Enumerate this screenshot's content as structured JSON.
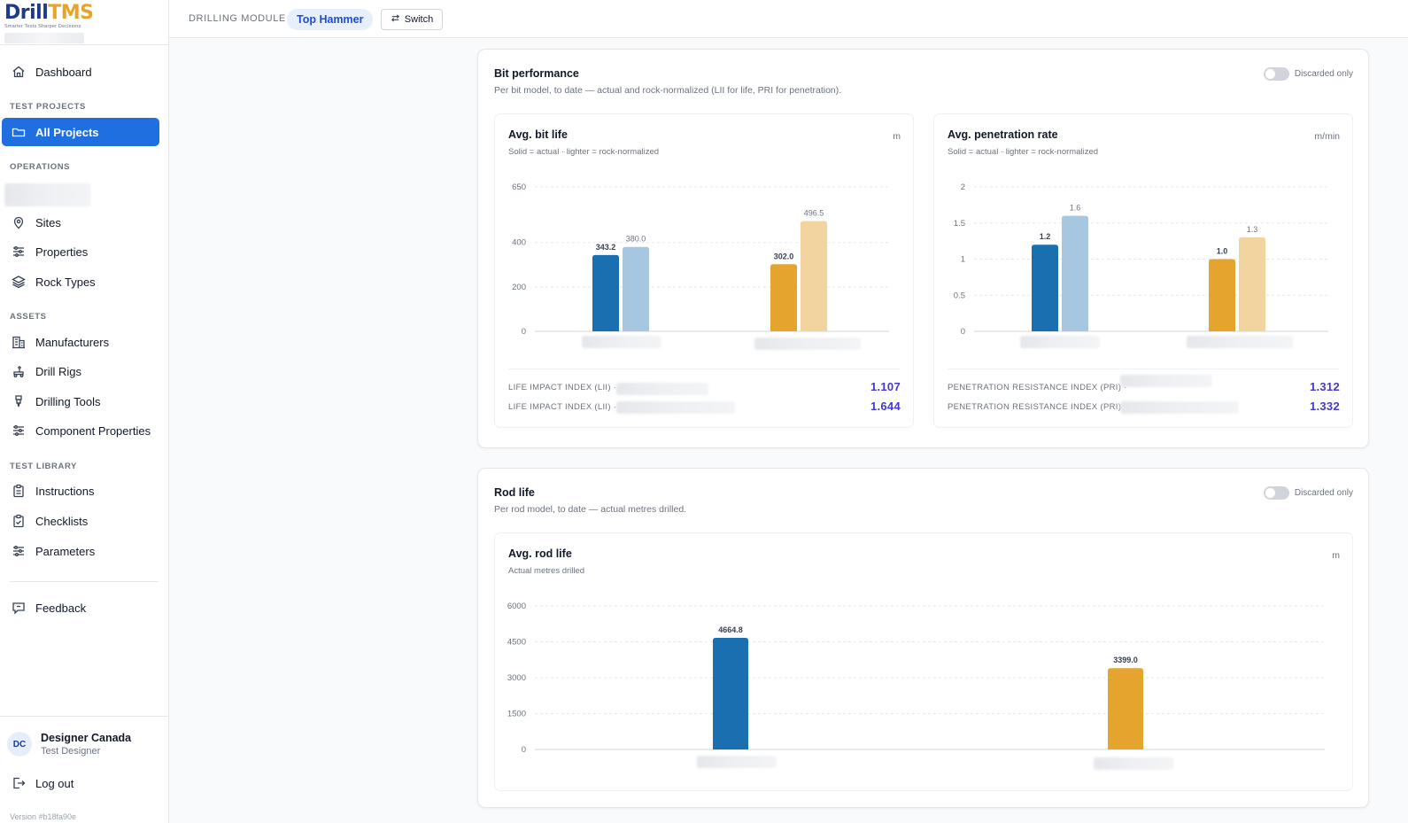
{
  "app": {
    "logo_brand_d": "D",
    "logo_brand_rill": "rill",
    "logo_brand_tms": "TMS",
    "logo_tagline": "Smarter Tests Sharper Decisions",
    "version": "Version #b18fa90e"
  },
  "topbar": {
    "module_label": "DRILLING MODULE",
    "active_module": "Top Hammer",
    "switch_label": "Switch"
  },
  "sidebar": {
    "dashboard": "Dashboard",
    "sections": {
      "test_projects": "TEST PROJECTS",
      "operations": "OPERATIONS",
      "assets": "ASSETS",
      "test_library": "TEST LIBRARY"
    },
    "all_projects": "All Projects",
    "sites": "Sites",
    "properties": "Properties",
    "rock_types": "Rock Types",
    "manufacturers": "Manufacturers",
    "drill_rigs": "Drill Rigs",
    "drilling_tools": "Drilling Tools",
    "component_properties": "Component Properties",
    "instructions": "Instructions",
    "checklists": "Checklists",
    "parameters": "Parameters",
    "feedback": "Feedback",
    "logout": "Log out"
  },
  "user": {
    "initials": "DC",
    "name": "Designer Canada",
    "role": "Test Designer"
  },
  "bit_performance": {
    "title": "Bit performance",
    "subtitle": "Per bit model, to date — actual and rock-normalized (LII for life, PRI for penetration).",
    "toggle_label": "Discarded only",
    "bit_life": {
      "title": "Avg. bit life",
      "subtitle": "Solid = actual · lighter = rock-normalized",
      "unit": "m",
      "index_label": "LIFE IMPACT INDEX (LII) ·",
      "index_values": [
        "1.107",
        "1.644"
      ]
    },
    "penetration": {
      "title": "Avg. penetration rate",
      "subtitle": "Solid = actual · lighter = rock-normalized",
      "unit": "m/min",
      "index_label": "PENETRATION RESISTANCE INDEX (PRI) ·",
      "index_values": [
        "1.312",
        "1.332"
      ]
    }
  },
  "rod_life": {
    "title": "Rod life",
    "subtitle": "Per rod model, to date — actual metres drilled.",
    "toggle_label": "Discarded only",
    "chart_title": "Avg. rod life",
    "chart_subtitle": "Actual metres drilled",
    "unit": "m"
  },
  "colors": {
    "blue": "#1a6fb0",
    "blue_light": "#a7c6e0",
    "orange": "#e5a42e",
    "orange_light": "#f1d49e",
    "accent": "#1f6fe0",
    "index_value": "#4338ca"
  },
  "chart_data": [
    {
      "type": "bar",
      "title": "Avg. bit life",
      "ylabel": "m",
      "ylim": [
        0,
        650
      ],
      "yticks": [
        0,
        200,
        400,
        650
      ],
      "series": [
        {
          "values": [
            343.2,
            302.0
          ]
        },
        {
          "values": [
            380.0,
            496.5
          ]
        }
      ],
      "value_labels": [
        [
          "343.2",
          "302.0"
        ],
        [
          "380.0",
          "496.5"
        ]
      ]
    },
    {
      "type": "bar",
      "title": "Avg. penetration rate",
      "ylabel": "m/min",
      "ylim": [
        0,
        2
      ],
      "yticks": [
        0,
        0.5,
        1,
        1.5,
        2
      ],
      "ytick_labels": [
        "0",
        "0.5",
        "1",
        "1.5",
        "2"
      ],
      "series": [
        {
          "values": [
            1.2,
            1.0
          ]
        },
        {
          "values": [
            1.6,
            1.3
          ]
        }
      ],
      "value_labels": [
        [
          "1.2",
          "1.0"
        ],
        [
          "1.6",
          "1.3"
        ]
      ]
    },
    {
      "type": "bar",
      "title": "Avg. rod life",
      "ylabel": "m",
      "ylim": [
        0,
        6000
      ],
      "yticks": [
        0,
        1500,
        3000,
        4500,
        6000
      ],
      "series": [
        {
          "values": [
            4664.8,
            3399.0
          ]
        }
      ],
      "value_labels": [
        [
          "4664.8",
          "3399.0"
        ]
      ]
    }
  ]
}
